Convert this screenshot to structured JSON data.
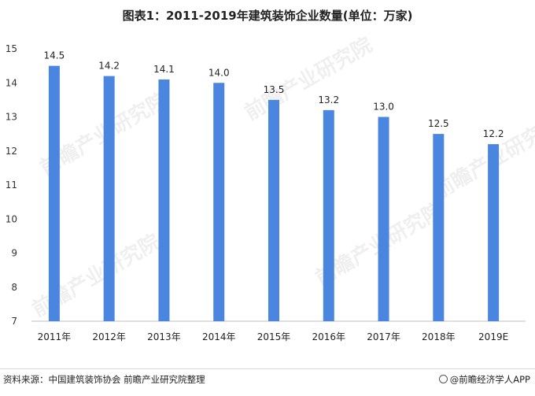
{
  "title": "图表1：2011-2019年建筑装饰企业数量(单位：万家)",
  "source": "资料来源：中国建筑装饰协会   前瞻产业研究院整理",
  "brand": "@前瞻经济学人APP",
  "watermark": "前瞻产业研究院",
  "chart_data": {
    "type": "bar",
    "title": "图表1：2011-2019年建筑装饰企业数量(单位：万家)",
    "categories": [
      "2011年",
      "2012年",
      "2013年",
      "2014年",
      "2015年",
      "2016年",
      "2017年",
      "2018年",
      "2019E"
    ],
    "values": [
      14.5,
      14.2,
      14.1,
      14.0,
      13.5,
      13.2,
      13.0,
      12.5,
      12.2
    ],
    "value_labels": [
      "14.5",
      "14.2",
      "14.1",
      "14.0",
      "13.5",
      "13.2",
      "13.0",
      "12.5",
      "12.2"
    ],
    "yticks": [
      7,
      8,
      9,
      10,
      11,
      12,
      13,
      14,
      15
    ],
    "ylim": [
      7,
      15
    ],
    "xlabel": "",
    "ylabel": "",
    "grid": false,
    "legend": "none",
    "bar_color": "#4a86e0"
  }
}
